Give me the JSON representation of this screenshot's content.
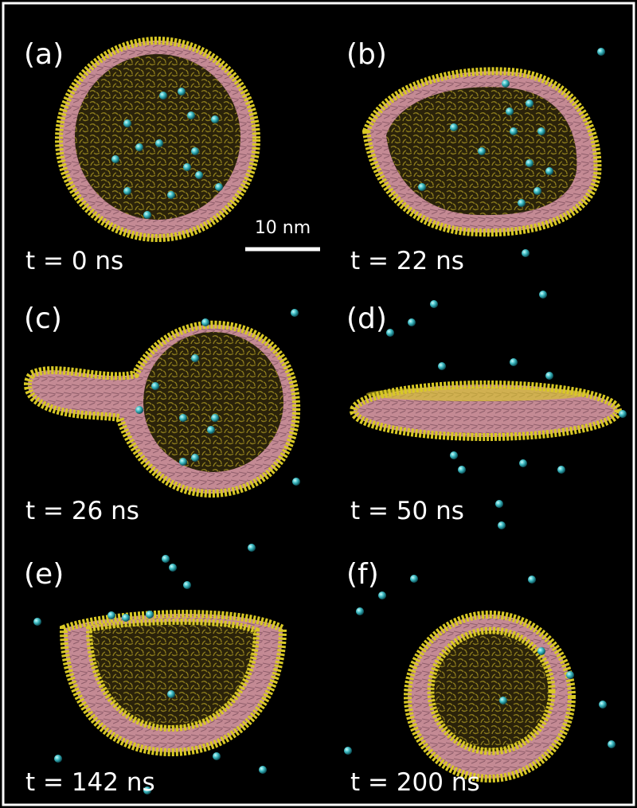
{
  "panels": [
    {
      "label": "(a)",
      "time": "t = 0 ns"
    },
    {
      "label": "(b)",
      "time": "t = 22 ns"
    },
    {
      "label": "(c)",
      "time": "t = 26 ns"
    },
    {
      "label": "(d)",
      "time": "t = 50 ns"
    },
    {
      "label": "(e)",
      "time": "t = 142 ns"
    },
    {
      "label": "(f)",
      "time": "t = 200 ns"
    }
  ],
  "scale_bar": "10 nm"
}
